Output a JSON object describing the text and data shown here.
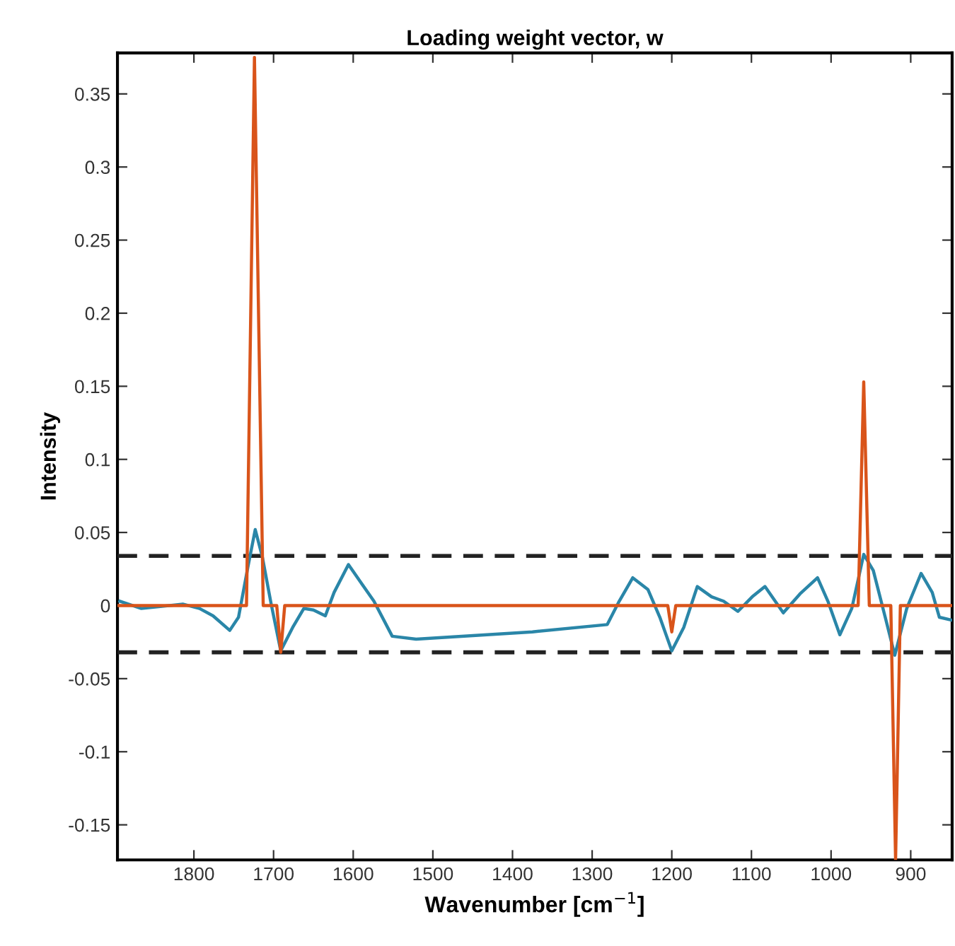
{
  "chart_data": {
    "type": "line",
    "title": "Loading weight vector, w",
    "xlabel": "Wavenumber [cm$^{−1}$]",
    "ylabel": "Intensity",
    "xlim": [
      1896,
      848
    ],
    "ylim": [
      -0.174,
      0.378
    ],
    "xticks": [
      1800,
      1700,
      1600,
      1500,
      1400,
      1300,
      1200,
      1100,
      1000,
      900
    ],
    "yticks": [
      -0.15,
      -0.1,
      -0.05,
      0,
      0.05,
      0.1,
      0.15,
      0.2,
      0.25,
      0.3,
      0.35
    ],
    "grid": false,
    "legend": false,
    "marker": "none",
    "line_style": "solid",
    "series": [
      {
        "color": "#d9541a",
        "x": [
          1896,
          1734,
          1724,
          1713,
          1696,
          1691,
          1686,
          1205,
          1200,
          1195,
          966,
          959,
          952,
          925,
          919,
          913,
          848
        ],
        "values": [
          0,
          0,
          0.375,
          0,
          0,
          -0.032,
          0,
          0,
          -0.018,
          0,
          0,
          0.153,
          0,
          0,
          -0.174,
          0,
          0
        ]
      },
      {
        "color": "#2a86a8",
        "x": [
          1893,
          1866,
          1814,
          1793,
          1776,
          1755,
          1744,
          1732,
          1723,
          1714,
          1703,
          1691,
          1676,
          1662,
          1650,
          1635,
          1624,
          1606,
          1592,
          1574,
          1551,
          1521,
          1375,
          1281,
          1266,
          1249,
          1230,
          1215,
          1200,
          1185,
          1168,
          1150,
          1135,
          1117,
          1099,
          1083,
          1060,
          1039,
          1017,
          1004,
          989,
          974,
          959,
          947,
          932,
          920,
          905,
          887,
          873,
          864,
          848
        ],
        "values": [
          0.003,
          -0.002,
          0.001,
          -0.002,
          -0.007,
          -0.017,
          -0.008,
          0.027,
          0.052,
          0.033,
          0.001,
          -0.031,
          -0.015,
          -0.002,
          -0.003,
          -0.007,
          0.009,
          0.028,
          0.017,
          0.003,
          -0.021,
          -0.023,
          -0.018,
          -0.013,
          0.003,
          0.019,
          0.011,
          -0.008,
          -0.031,
          -0.015,
          0.013,
          0.006,
          0.003,
          -0.004,
          0.006,
          0.013,
          -0.005,
          0.008,
          0.019,
          0.003,
          -0.02,
          -0.002,
          0.035,
          0.024,
          -0.008,
          -0.034,
          -0.002,
          0.022,
          0.009,
          -0.008,
          -0.01
        ]
      }
    ],
    "ref_lines": [
      {
        "axis": "y",
        "value": 0.034,
        "color": "#222222",
        "line_style": "dashed"
      },
      {
        "axis": "y",
        "value": -0.032,
        "color": "#222222",
        "line_style": "dashed"
      }
    ]
  }
}
